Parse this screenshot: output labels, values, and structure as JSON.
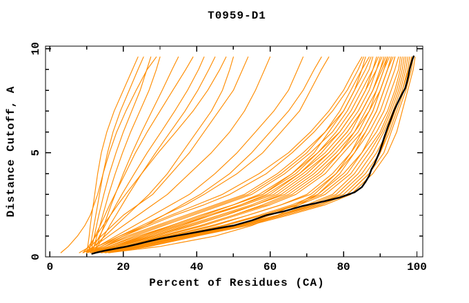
{
  "chart_data": {
    "type": "line",
    "title": "T0959-D1",
    "xlabel": "Percent of Residues (CA)",
    "ylabel": "Distance Cutoff, A",
    "xlim": [
      -1.2,
      101.6
    ],
    "ylim": [
      0,
      10.12
    ],
    "x_major_ticks": [
      0,
      20,
      40,
      60,
      80,
      100
    ],
    "x_minor_ticks": [
      10,
      30,
      50,
      70,
      90
    ],
    "y_major_ticks": [
      0,
      5,
      10
    ],
    "y_minor_ticks": [
      1,
      2,
      3,
      4,
      6,
      7,
      8,
      9
    ],
    "grid": false,
    "legend": "none",
    "colors": {
      "models": "#FF8C00",
      "best_model": "#000000",
      "axis": "#000000",
      "background": "#FFFFFF"
    },
    "cutoff_grid": [
      0.2,
      0.5,
      1,
      1.5,
      2,
      2.5,
      3,
      4,
      5,
      6,
      7,
      8,
      9,
      9.6
    ],
    "best_model": {
      "name": "best-model",
      "points": [
        [
          11.5,
          0.15
        ],
        [
          13,
          0.22
        ],
        [
          15,
          0.3
        ],
        [
          18,
          0.4
        ],
        [
          21,
          0.5
        ],
        [
          24,
          0.62
        ],
        [
          27,
          0.75
        ],
        [
          30,
          0.87
        ],
        [
          34,
          1.0
        ],
        [
          38,
          1.12
        ],
        [
          42,
          1.25
        ],
        [
          46,
          1.38
        ],
        [
          50,
          1.5
        ],
        [
          55,
          1.75
        ],
        [
          59,
          2.0
        ],
        [
          64,
          2.2
        ],
        [
          69,
          2.45
        ],
        [
          73,
          2.6
        ],
        [
          79,
          2.85
        ],
        [
          83,
          3.1
        ],
        [
          85,
          3.35
        ],
        [
          86,
          3.6
        ],
        [
          87,
          3.9
        ],
        [
          87.6,
          4.2
        ],
        [
          88.4,
          4.45
        ],
        [
          89,
          4.7
        ],
        [
          89.7,
          5.0
        ],
        [
          90.3,
          5.3
        ],
        [
          91.2,
          5.8
        ],
        [
          92.2,
          6.3
        ],
        [
          93,
          6.65
        ],
        [
          93.7,
          7.0
        ],
        [
          94.5,
          7.3
        ],
        [
          95.3,
          7.6
        ],
        [
          96.2,
          7.9
        ],
        [
          96.8,
          8.1
        ],
        [
          97.3,
          8.4
        ],
        [
          97.7,
          8.7
        ],
        [
          98,
          9.0
        ],
        [
          98.3,
          9.2
        ],
        [
          98.7,
          9.45
        ],
        [
          99.1,
          9.63
        ]
      ]
    },
    "models": [
      {
        "pct": [
          11,
          16,
          24,
          33,
          41,
          50,
          57,
          66,
          72,
          76,
          80,
          83,
          85,
          86
        ]
      },
      {
        "pct": [
          10,
          15,
          22,
          30,
          38,
          46,
          54,
          63,
          70,
          75,
          79,
          82,
          85,
          87
        ]
      },
      {
        "pct": [
          12,
          18,
          27,
          36,
          44,
          52,
          60,
          68,
          74,
          79,
          83,
          86,
          88,
          89
        ]
      },
      {
        "pct": [
          11,
          17,
          26,
          35,
          43,
          52,
          59,
          68,
          75,
          80,
          84,
          87,
          89,
          90
        ]
      },
      {
        "pct": [
          12,
          19,
          29,
          39,
          48,
          56,
          63,
          71,
          77,
          82,
          85,
          88,
          90,
          91
        ]
      },
      {
        "pct": [
          13,
          20,
          30,
          41,
          50,
          58,
          65,
          73,
          79,
          83,
          87,
          89,
          91,
          92
        ]
      },
      {
        "pct": [
          11,
          18,
          28,
          38,
          47,
          56,
          64,
          72,
          78,
          83,
          86,
          89,
          91,
          92.5
        ]
      },
      {
        "pct": [
          12,
          20,
          31,
          42,
          51,
          60,
          67,
          75,
          80,
          85,
          88,
          90,
          92,
          93
        ]
      },
      {
        "pct": [
          13,
          21,
          33,
          45,
          54,
          63,
          70,
          77,
          82,
          86,
          89,
          91,
          93,
          94
        ]
      },
      {
        "pct": [
          12,
          20,
          32,
          44,
          54,
          63,
          71,
          78,
          83,
          87,
          90,
          92,
          94,
          95
        ]
      },
      {
        "pct": [
          14,
          22,
          34,
          47,
          57,
          66,
          73,
          80,
          85,
          88,
          91,
          93,
          95,
          95.5
        ]
      },
      {
        "pct": [
          13,
          22,
          35,
          48,
          58,
          67,
          74,
          81,
          85,
          89,
          92,
          94,
          95.5,
          96
        ]
      },
      {
        "pct": [
          12,
          21,
          34,
          47,
          58,
          68,
          75,
          82,
          86,
          90,
          92.5,
          94.5,
          96,
          96.5
        ]
      },
      {
        "pct": [
          14,
          23,
          36,
          50,
          60,
          70,
          77,
          83,
          87,
          90.5,
          93,
          95,
          96.5,
          97
        ]
      },
      {
        "pct": [
          13,
          23,
          37,
          51,
          62,
          71,
          78,
          84,
          88,
          91,
          93.5,
          95.5,
          97,
          97.5
        ]
      },
      {
        "pct": [
          15,
          25,
          38,
          52,
          63,
          72,
          79,
          85,
          89,
          92,
          94,
          96,
          97.5,
          98
        ]
      },
      {
        "pct": [
          14,
          24,
          37,
          51,
          62,
          72,
          80,
          86,
          90,
          92.5,
          94.5,
          96.5,
          98,
          98.5
        ]
      },
      {
        "pct": [
          15,
          26,
          39,
          53,
          64,
          74,
          81,
          87,
          91,
          93,
          95,
          97,
          98.5,
          99
        ]
      },
      {
        "pct": [
          16,
          27,
          40,
          54,
          65,
          75,
          82,
          88,
          92,
          94.5,
          96,
          97.5,
          99,
          99.5
        ]
      },
      {
        "pct": [
          10,
          14,
          20,
          27,
          34,
          42,
          49,
          59,
          66,
          72,
          77,
          81,
          84,
          85.5
        ]
      },
      {
        "pct": [
          9,
          13,
          19,
          26,
          33,
          40,
          47,
          57,
          65,
          71,
          76,
          80,
          83,
          85
        ]
      },
      {
        "pct": [
          11,
          16,
          23,
          31,
          39,
          47,
          55,
          64,
          71,
          77,
          81,
          84,
          87,
          88
        ]
      },
      {
        "pct": [
          12,
          17,
          25,
          34,
          42,
          50,
          58,
          67,
          73,
          78,
          82,
          85,
          88,
          89.5
        ]
      },
      {
        "pct": [
          10,
          15,
          21,
          29,
          37,
          45,
          53,
          62,
          69,
          75,
          80,
          83,
          86,
          87.5
        ]
      },
      {
        "pct": [
          13,
          19,
          28,
          37,
          46,
          55,
          62,
          70,
          76,
          81,
          85,
          88,
          90,
          91.5
        ]
      },
      {
        "pct": [
          14,
          21,
          31,
          41,
          50,
          59,
          66,
          74,
          79,
          84,
          87,
          90,
          92,
          93.5
        ]
      },
      {
        "pct": [
          11,
          17,
          25,
          33,
          41,
          50,
          58,
          66,
          73,
          79,
          83,
          86,
          89,
          90.5
        ]
      },
      {
        "pct": [
          12,
          18,
          26,
          35,
          44,
          53,
          61,
          69,
          76,
          81,
          85,
          88,
          90.5,
          92
        ]
      },
      {
        "pct": [
          16,
          30,
          45,
          55,
          62,
          68,
          73,
          79,
          83,
          86,
          89,
          91,
          93,
          94
        ]
      },
      {
        "pct": [
          15,
          27,
          40,
          52,
          60,
          67,
          72,
          78,
          82,
          85,
          88,
          90,
          92,
          93
        ]
      },
      {
        "pct": [
          14,
          24,
          38,
          52,
          63,
          73,
          81,
          87,
          90,
          92,
          94,
          96,
          97.8,
          98.6
        ]
      },
      {
        "pct": [
          10,
          14,
          19,
          25,
          31,
          37,
          42,
          51,
          58,
          63,
          68,
          71,
          74,
          76
        ]
      },
      {
        "pct": [
          11,
          15,
          20,
          26,
          31,
          36,
          41,
          49,
          55,
          60,
          65,
          69,
          72,
          74
        ]
      },
      {
        "pct": [
          10,
          13,
          18,
          23,
          28,
          33,
          38,
          45,
          51,
          56,
          61,
          65,
          67.5,
          69
        ]
      },
      {
        "pct": [
          9,
          12,
          16,
          20,
          24,
          28,
          32,
          38,
          44,
          49,
          53,
          56,
          58.5,
          60
        ]
      },
      {
        "pct": [
          10,
          12,
          15,
          18,
          21,
          24,
          27,
          32,
          36,
          40,
          44,
          47,
          49,
          50
        ]
      },
      {
        "pct": [
          8,
          11,
          14,
          17,
          20,
          24,
          28,
          33,
          38,
          42,
          46,
          50,
          52.5,
          54
        ]
      },
      {
        "pct": [
          10,
          10.3,
          10.7,
          11,
          11.4,
          11.8,
          12.2,
          13,
          14,
          15.5,
          17.5,
          20,
          22.5,
          24
        ]
      },
      {
        "pct": [
          10.5,
          11,
          11.5,
          12,
          12.5,
          13,
          13.5,
          14.5,
          15.7,
          17.2,
          19.2,
          21.6,
          24,
          25.5
        ]
      },
      {
        "pct": [
          11,
          11.5,
          12.1,
          12.7,
          13.3,
          14,
          14.7,
          16.2,
          18,
          20,
          22.3,
          24.6,
          26.4,
          27.5
        ]
      },
      {
        "pct": [
          11.5,
          12,
          12.8,
          13.6,
          14.4,
          15.2,
          16,
          17.8,
          19.8,
          22,
          24.5,
          27,
          29,
          30
        ]
      },
      {
        "pct": [
          12,
          12.7,
          13.7,
          14.7,
          15.7,
          16.7,
          17.8,
          20,
          22.4,
          25,
          27.8,
          30.6,
          33.3,
          35
        ]
      },
      {
        "pct": [
          10,
          11,
          12.3,
          13.7,
          15,
          16.3,
          17.7,
          20.5,
          23.3,
          26.5,
          30,
          33.5,
          37,
          39
        ]
      },
      {
        "pct": [
          11,
          12,
          13.5,
          15,
          16.5,
          18,
          19.6,
          23,
          26.5,
          30.3,
          34,
          37.5,
          40.5,
          42
        ]
      },
      {
        "pct": [
          12,
          13,
          14.7,
          16.3,
          18,
          19.7,
          21.4,
          25,
          28.8,
          32.8,
          36.8,
          40.3,
          43.3,
          45
        ]
      },
      {
        "pct": [
          9,
          10.5,
          12.5,
          14.5,
          16.5,
          18.5,
          20.6,
          25,
          29.5,
          34.3,
          39,
          43,
          46.3,
          48
        ]
      },
      {
        "pct": [
          3,
          5,
          7.5,
          9.5,
          11,
          12,
          13,
          14.5,
          16.2,
          18.2,
          20.7,
          23.5,
          26.5,
          29
        ]
      }
    ]
  }
}
